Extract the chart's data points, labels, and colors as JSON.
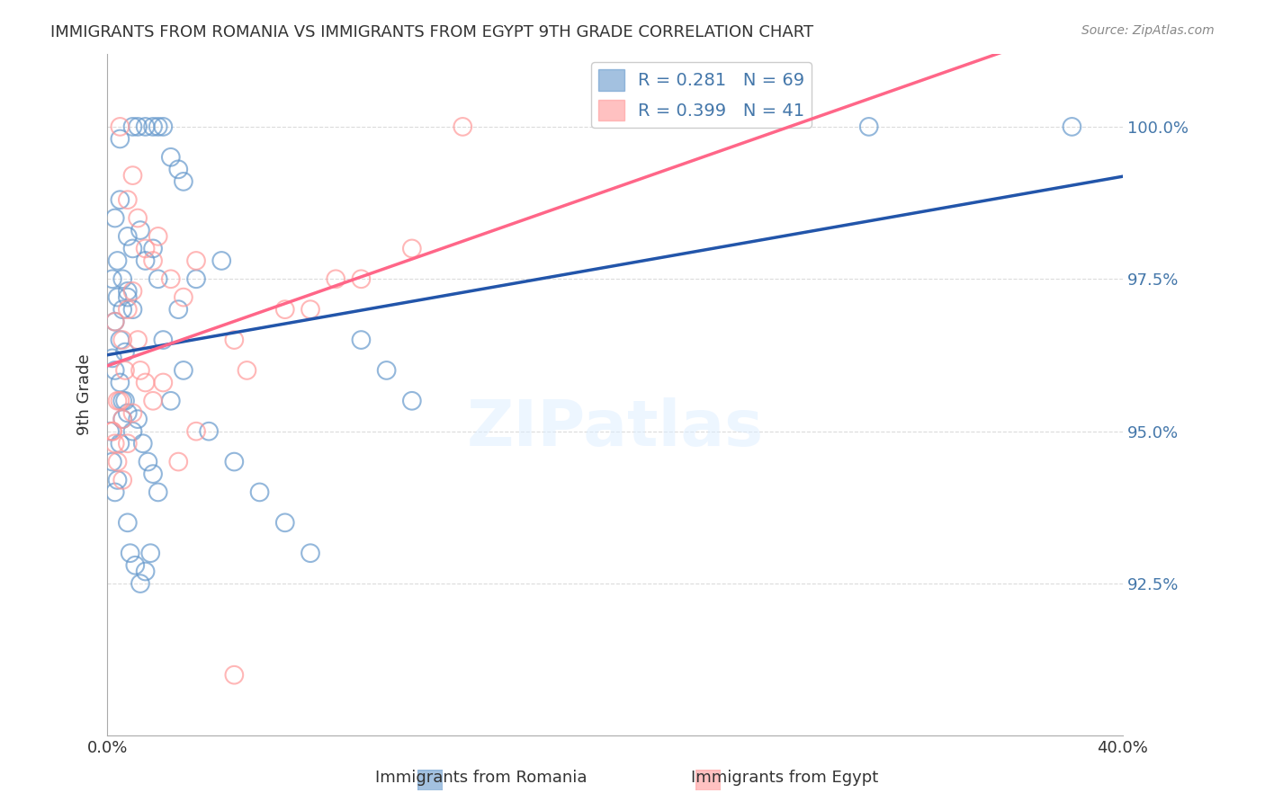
{
  "title": "IMMIGRANTS FROM ROMANIA VS IMMIGRANTS FROM EGYPT 9TH GRADE CORRELATION CHART",
  "source": "Source: ZipAtlas.com",
  "xlabel_romania": "Immigrants from Romania",
  "xlabel_egypt": "Immigrants from Egypt",
  "ylabel": "9th Grade",
  "xlim": [
    0.0,
    40.0
  ],
  "ylim": [
    90.0,
    101.2
  ],
  "xticks": [
    0.0,
    10.0,
    20.0,
    30.0,
    40.0
  ],
  "xtick_labels": [
    "0.0%",
    "",
    "",
    "",
    "40.0%"
  ],
  "ytick_labels": [
    "92.5%",
    "95.0%",
    "97.5%",
    "100.0%"
  ],
  "yticks": [
    92.5,
    95.0,
    97.5,
    100.0
  ],
  "color_romania": "#6699CC",
  "color_egypt": "#FF9999",
  "legend_R_romania": "0.281",
  "legend_N_romania": "69",
  "legend_R_egypt": "0.399",
  "legend_N_egypt": "41",
  "romania_x": [
    0.5,
    1.0,
    1.2,
    1.5,
    1.8,
    2.0,
    2.2,
    2.5,
    2.8,
    3.0,
    0.3,
    0.5,
    0.8,
    1.0,
    1.3,
    1.5,
    1.8,
    2.0,
    0.2,
    0.4,
    0.6,
    0.8,
    0.3,
    0.5,
    0.7,
    0.4,
    0.6,
    0.8,
    1.0,
    0.2,
    0.3,
    0.5,
    0.6,
    0.8,
    1.0,
    1.2,
    1.4,
    1.6,
    1.8,
    2.0,
    2.5,
    3.0,
    4.0,
    5.0,
    6.0,
    7.0,
    8.0,
    10.0,
    11.0,
    12.0,
    0.1,
    0.2,
    0.3,
    0.4,
    0.5,
    0.6,
    0.7,
    0.8,
    0.9,
    1.1,
    1.3,
    1.5,
    1.7,
    2.2,
    2.8,
    3.5,
    4.5,
    30.0,
    38.0
  ],
  "romania_y": [
    99.8,
    100.0,
    100.0,
    100.0,
    100.0,
    100.0,
    100.0,
    99.5,
    99.3,
    99.1,
    98.5,
    98.8,
    98.2,
    98.0,
    98.3,
    97.8,
    98.0,
    97.5,
    97.5,
    97.2,
    97.0,
    97.3,
    96.8,
    96.5,
    96.3,
    97.8,
    97.5,
    97.2,
    97.0,
    96.2,
    96.0,
    95.8,
    95.5,
    95.3,
    95.0,
    95.2,
    94.8,
    94.5,
    94.3,
    94.0,
    95.5,
    96.0,
    95.0,
    94.5,
    94.0,
    93.5,
    93.0,
    96.5,
    96.0,
    95.5,
    95.0,
    94.5,
    94.0,
    94.2,
    94.8,
    95.2,
    95.5,
    93.5,
    93.0,
    92.8,
    92.5,
    92.7,
    93.0,
    96.5,
    97.0,
    97.5,
    97.8,
    100.0,
    100.0
  ],
  "egypt_x": [
    0.5,
    0.8,
    1.0,
    1.2,
    1.5,
    1.8,
    2.0,
    2.5,
    3.0,
    3.5,
    0.3,
    0.6,
    0.8,
    1.0,
    1.3,
    1.5,
    0.4,
    0.6,
    0.2,
    0.4,
    0.6,
    0.8,
    1.0,
    5.0,
    7.0,
    9.0,
    12.0,
    0.2,
    0.3,
    0.5,
    0.7,
    1.2,
    1.8,
    2.2,
    2.8,
    3.5,
    5.5,
    8.0,
    10.0,
    14.0,
    5.0
  ],
  "egypt_y": [
    100.0,
    98.8,
    99.2,
    98.5,
    98.0,
    97.8,
    98.2,
    97.5,
    97.2,
    97.8,
    96.8,
    96.5,
    97.0,
    97.3,
    96.0,
    95.8,
    95.5,
    95.2,
    95.0,
    94.5,
    94.2,
    94.8,
    95.3,
    96.5,
    97.0,
    97.5,
    98.0,
    95.0,
    94.8,
    95.5,
    96.0,
    96.5,
    95.5,
    95.8,
    94.5,
    95.0,
    96.0,
    97.0,
    97.5,
    100.0,
    91.0
  ],
  "watermark": "ZIPatlas",
  "background_color": "#FFFFFF",
  "grid_color": "#CCCCCC",
  "title_color": "#333333",
  "axis_label_color": "#4477AA",
  "ytick_color": "#4477AA"
}
